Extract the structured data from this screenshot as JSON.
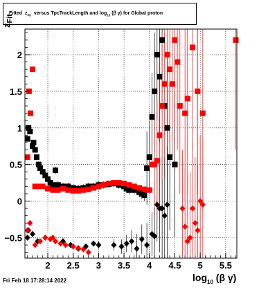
{
  "chart_data": {
    "type": "scatter",
    "title_parts": {
      "prefix": "Fitted",
      "var": "z",
      "var_sub": "Fit",
      "mid": "versus TpcTrackLength and log",
      "log_sub": "10",
      "suffix": "(β γ) for Global proton"
    },
    "xlabel_parts": {
      "main": "log",
      "sub": "10",
      "suffix": "(β γ)"
    },
    "ylabel_parts": {
      "main": "z",
      "sub": "Fit"
    },
    "xlim": [
      1.55,
      5.72
    ],
    "ylim": [
      -0.78,
      2.35
    ],
    "xticks": [
      {
        "value": 2,
        "label": "2"
      },
      {
        "value": 2.5,
        "label": "2.5"
      },
      {
        "value": 3,
        "label": "3"
      },
      {
        "value": 3.5,
        "label": "3.5"
      },
      {
        "value": 4,
        "label": "4"
      },
      {
        "value": 4.5,
        "label": "4.5"
      },
      {
        "value": 5,
        "label": "5"
      },
      {
        "value": 5.5,
        "label": "5.5"
      }
    ],
    "yticks": [
      {
        "value": -0.5,
        "label": "−0.5"
      },
      {
        "value": 0,
        "label": "0"
      },
      {
        "value": 0.5,
        "label": "0.5"
      },
      {
        "value": 1,
        "label": "1"
      },
      {
        "value": 1.5,
        "label": "1.5"
      },
      {
        "value": 2,
        "label": "2"
      }
    ],
    "grid": true,
    "series": [
      {
        "marker": "square",
        "color": "#000000",
        "points": [
          [
            1.6,
            0.85,
            0
          ],
          [
            1.62,
            1.0,
            0
          ],
          [
            1.65,
            0.95,
            0
          ],
          [
            1.7,
            0.75,
            0
          ],
          [
            1.72,
            0.8,
            0
          ],
          [
            1.75,
            0.7,
            0
          ],
          [
            1.78,
            0.6,
            0.03
          ],
          [
            1.82,
            0.5,
            0.04
          ],
          [
            1.85,
            0.45,
            0.04
          ],
          [
            1.9,
            0.4,
            0.04
          ],
          [
            1.95,
            0.35,
            0.05
          ],
          [
            2.0,
            0.3,
            0.05
          ],
          [
            2.05,
            0.25,
            0.05
          ],
          [
            2.1,
            0.22,
            0.05
          ],
          [
            2.15,
            0.42,
            0.05
          ],
          [
            2.2,
            0.22,
            0.05
          ],
          [
            2.3,
            0.2,
            0.05
          ],
          [
            2.4,
            0.2,
            0.05
          ],
          [
            2.5,
            0.18,
            0.05
          ],
          [
            2.6,
            0.17,
            0.05
          ],
          [
            2.7,
            0.18,
            0.05
          ],
          [
            2.8,
            0.2,
            0.05
          ],
          [
            2.9,
            0.2,
            0.05
          ],
          [
            3.0,
            0.22,
            0.05
          ],
          [
            3.1,
            0.22,
            0.05
          ],
          [
            3.2,
            0.23,
            0.05
          ],
          [
            3.3,
            0.24,
            0.05
          ],
          [
            3.4,
            0.22,
            0.05
          ],
          [
            3.5,
            0.2,
            0.06
          ],
          [
            3.55,
            0.17,
            0.06
          ],
          [
            3.6,
            0.15,
            0.06
          ],
          [
            3.7,
            0.15,
            0.06
          ],
          [
            3.8,
            0.12,
            0.07
          ],
          [
            3.85,
            0.1,
            0.07
          ],
          [
            3.9,
            0.08,
            0.08
          ],
          [
            3.95,
            0.45,
            0.5
          ],
          [
            4.0,
            0.6,
            0.5
          ],
          [
            4.05,
            1.15,
            0.6
          ],
          [
            4.1,
            1.5,
            0.8
          ],
          [
            4.15,
            2.0,
            0.9
          ],
          [
            4.2,
            1.7,
            0.9
          ],
          [
            4.25,
            2.2,
            1.0
          ],
          [
            4.3,
            1.3,
            1.0
          ],
          [
            4.35,
            1.0,
            1.0
          ],
          [
            4.4,
            0.6,
            1.0
          ],
          [
            4.5,
            0.5,
            1.0
          ]
        ]
      },
      {
        "marker": "diamond",
        "color": "#000000",
        "points": [
          [
            1.6,
            -0.5,
            0
          ],
          [
            1.62,
            -0.4,
            0
          ],
          [
            1.7,
            -0.45,
            0
          ],
          [
            1.8,
            -0.55,
            0
          ],
          [
            1.95,
            -0.5,
            0
          ],
          [
            2.3,
            -0.55,
            0
          ],
          [
            2.45,
            -0.6,
            0
          ],
          [
            2.6,
            -0.65,
            0
          ],
          [
            2.75,
            -0.62,
            0
          ],
          [
            2.9,
            -0.58,
            0
          ],
          [
            3.0,
            -0.6,
            0.05
          ],
          [
            3.3,
            -0.6,
            0.08
          ],
          [
            3.45,
            -0.62,
            0.1
          ],
          [
            3.55,
            -0.58,
            0.12
          ],
          [
            3.65,
            -0.55,
            0.15
          ],
          [
            3.75,
            -0.65,
            0.2
          ],
          [
            3.85,
            -0.52,
            0.2
          ],
          [
            3.95,
            -0.6,
            0.3
          ],
          [
            4.05,
            -0.45,
            0.3
          ],
          [
            4.1,
            -0.48,
            0.4
          ],
          [
            4.15,
            -0.05,
            0.5
          ],
          [
            4.2,
            -0.1,
            0.6
          ],
          [
            4.25,
            -0.1,
            0.7
          ],
          [
            4.3,
            -0.2,
            0.8
          ],
          [
            4.35,
            -0.05,
            0.8
          ]
        ]
      },
      {
        "marker": "square",
        "color": "#ff0000",
        "points": [
          [
            1.6,
            0.6,
            0
          ],
          [
            1.63,
            1.5,
            0
          ],
          [
            1.66,
            1.2,
            0
          ],
          [
            1.7,
            1.8,
            0
          ],
          [
            1.75,
            0.2,
            0
          ],
          [
            1.8,
            0.2,
            0
          ],
          [
            1.9,
            0.2,
            0.03
          ],
          [
            2.0,
            0.17,
            0.03
          ],
          [
            2.1,
            0.15,
            0.03
          ],
          [
            2.2,
            0.15,
            0.03
          ],
          [
            2.3,
            0.17,
            0.03
          ],
          [
            2.4,
            0.15,
            0.03
          ],
          [
            2.5,
            0.14,
            0.03
          ],
          [
            2.6,
            0.14,
            0.03
          ],
          [
            2.7,
            0.15,
            0.03
          ],
          [
            2.8,
            0.16,
            0.03
          ],
          [
            2.9,
            0.18,
            0.03
          ],
          [
            3.0,
            0.2,
            0.03
          ],
          [
            3.1,
            0.22,
            0.03
          ],
          [
            3.2,
            0.24,
            0.03
          ],
          [
            3.3,
            0.25,
            0.03
          ],
          [
            3.4,
            0.25,
            0.03
          ],
          [
            3.5,
            0.24,
            0.04
          ],
          [
            3.6,
            0.22,
            0.04
          ],
          [
            3.7,
            0.2,
            0.04
          ],
          [
            3.8,
            0.18,
            0.04
          ],
          [
            3.9,
            0.16,
            0.04
          ],
          [
            4.0,
            0.15,
            0.04
          ],
          [
            4.05,
            0.5,
            0.05
          ],
          [
            4.1,
            0.5,
            0.6
          ],
          [
            4.15,
            0.55,
            0.8
          ],
          [
            4.2,
            0.9,
            1.0
          ],
          [
            4.25,
            1.3,
            1.0
          ],
          [
            4.3,
            1.6,
            1.0
          ],
          [
            4.35,
            2.0,
            1.0
          ],
          [
            4.4,
            1.8,
            1.0
          ],
          [
            4.45,
            1.6,
            1.0
          ],
          [
            4.5,
            2.2,
            1.2
          ],
          [
            4.55,
            1.9,
            1.2
          ],
          [
            4.6,
            1.3,
            1.2
          ],
          [
            4.7,
            1.2,
            1.2
          ],
          [
            4.75,
            1.4,
            1.3
          ],
          [
            4.85,
            2.1,
            1.4
          ],
          [
            4.95,
            1.5,
            1.4
          ],
          [
            5.05,
            1.2,
            1.4
          ],
          [
            5.7,
            2.2,
            1.5
          ]
        ]
      },
      {
        "marker": "diamond",
        "color": "#ff0000",
        "points": [
          [
            1.6,
            -0.4,
            0
          ],
          [
            1.65,
            -0.3,
            0
          ],
          [
            1.75,
            -0.6,
            0
          ],
          [
            1.85,
            -0.55,
            0
          ],
          [
            1.95,
            -0.5,
            0
          ],
          [
            2.05,
            -0.52,
            0
          ],
          [
            2.1,
            -0.5,
            0
          ],
          [
            2.15,
            -0.55,
            0
          ],
          [
            2.25,
            -0.58,
            0
          ],
          [
            2.35,
            -0.6,
            0
          ],
          [
            2.5,
            -0.62,
            0
          ],
          [
            2.6,
            -0.64,
            0
          ],
          [
            2.7,
            -0.66,
            0
          ],
          [
            2.8,
            -0.7,
            0
          ],
          [
            4.65,
            -0.1,
            0.8
          ],
          [
            4.7,
            -0.35,
            0.8
          ],
          [
            4.75,
            -0.55,
            0.9
          ],
          [
            4.8,
            -0.5,
            0.9
          ],
          [
            4.85,
            -0.1,
            0.9
          ],
          [
            4.9,
            -0.3,
            0.9
          ],
          [
            4.95,
            -0.4,
            0.9
          ],
          [
            5.0,
            0.0,
            0.9
          ],
          [
            5.05,
            -0.05,
            0.9
          ]
        ]
      }
    ]
  },
  "timestamp": "Fri Feb 18 17:28:14 2022"
}
